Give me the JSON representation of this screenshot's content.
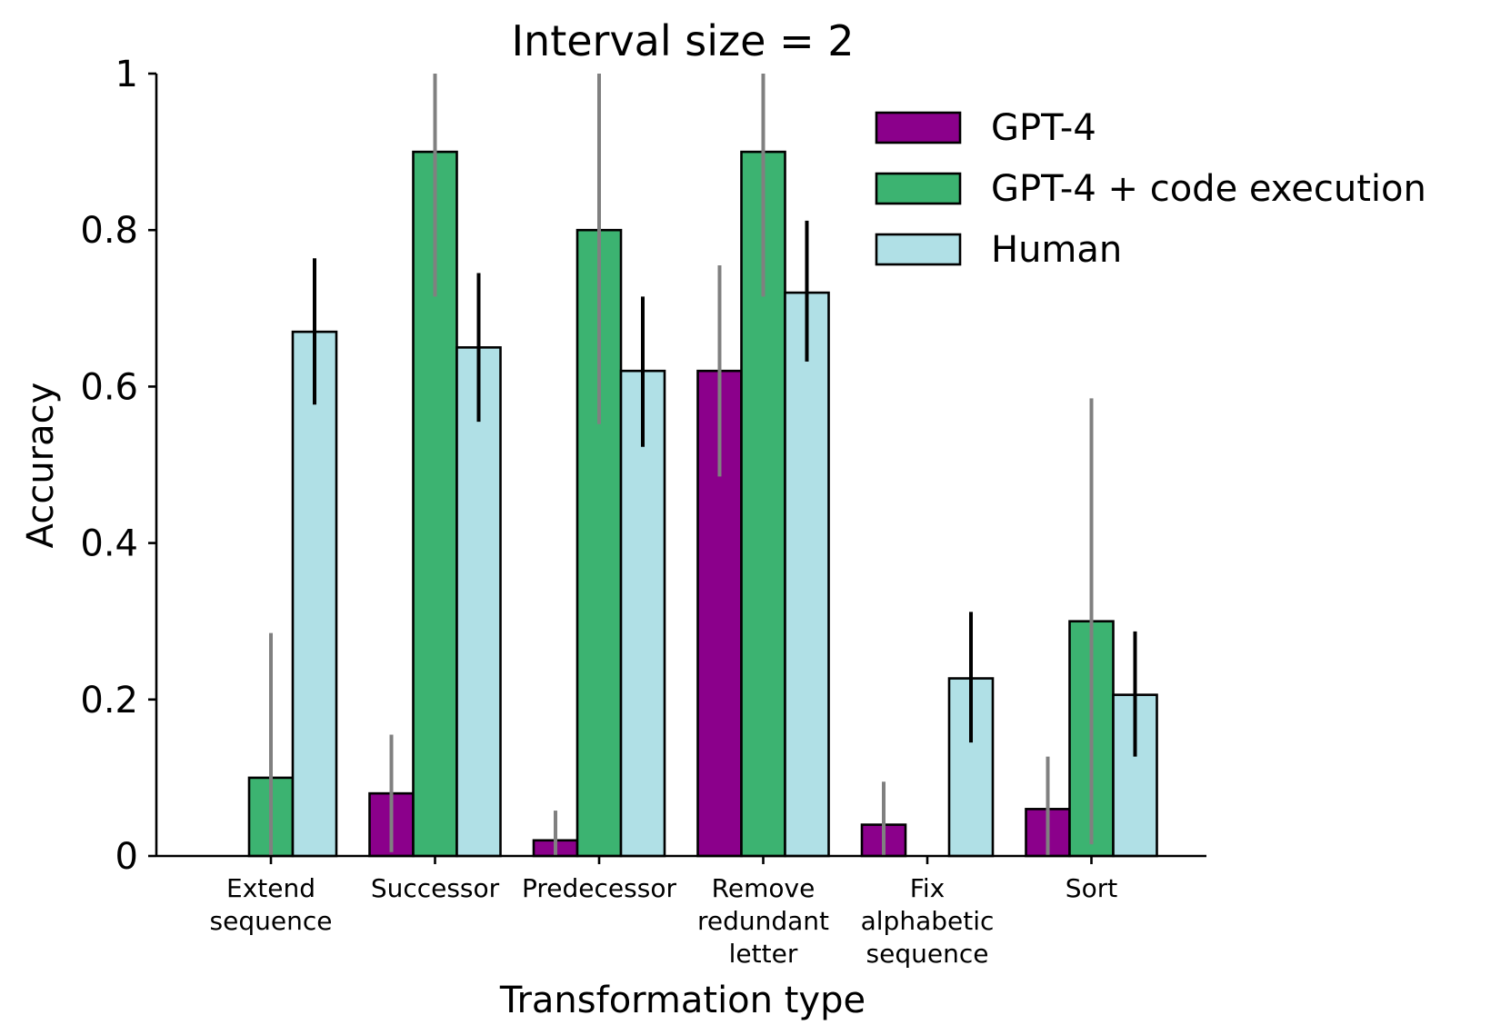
{
  "chart_data": {
    "type": "bar",
    "title": "Interval size = 2",
    "xlabel": "Transformation type",
    "ylabel": "Accuracy",
    "ylim": [
      0,
      1
    ],
    "yticks": [
      0,
      0.2,
      0.4,
      0.6,
      0.8,
      1
    ],
    "ytick_labels": [
      "0",
      "0.2",
      "0.4",
      "0.6",
      "0.8",
      "1"
    ],
    "grid": false,
    "legend_position": "top-right",
    "categories": [
      [
        "Extend",
        "sequence"
      ],
      [
        "Successor"
      ],
      [
        "Predecessor"
      ],
      [
        "Remove",
        "redundant",
        "letter"
      ],
      [
        "Fix",
        "alphabetic",
        "sequence"
      ],
      [
        "Sort"
      ]
    ],
    "series": [
      {
        "name": "GPT-4",
        "color": "#8b008b",
        "error_color": "#808080",
        "values": [
          0,
          0.08,
          0.02,
          0.62,
          0.04,
          0.06
        ],
        "err_low": [
          null,
          0.005,
          0.0,
          0.485,
          0.0,
          0.0
        ],
        "err_high": [
          null,
          0.155,
          0.058,
          0.755,
          0.095,
          0.127
        ]
      },
      {
        "name": "GPT-4 + code execution",
        "color": "#3cb371",
        "error_color": "#808080",
        "values": [
          0.1,
          0.9,
          0.8,
          0.9,
          0,
          0.3
        ],
        "err_low": [
          0.0,
          0.715,
          0.552,
          0.715,
          null,
          0.015
        ],
        "err_high": [
          0.285,
          1.0,
          1.0,
          1.0,
          null,
          0.585
        ]
      },
      {
        "name": "Human",
        "color": "#b0e0e6",
        "error_color": "#000000",
        "values": [
          0.67,
          0.65,
          0.62,
          0.72,
          0.227,
          0.206
        ],
        "err_low": [
          0.577,
          0.555,
          0.523,
          0.632,
          0.145,
          0.127
        ],
        "err_high": [
          0.764,
          0.745,
          0.715,
          0.812,
          0.312,
          0.287
        ]
      }
    ]
  }
}
